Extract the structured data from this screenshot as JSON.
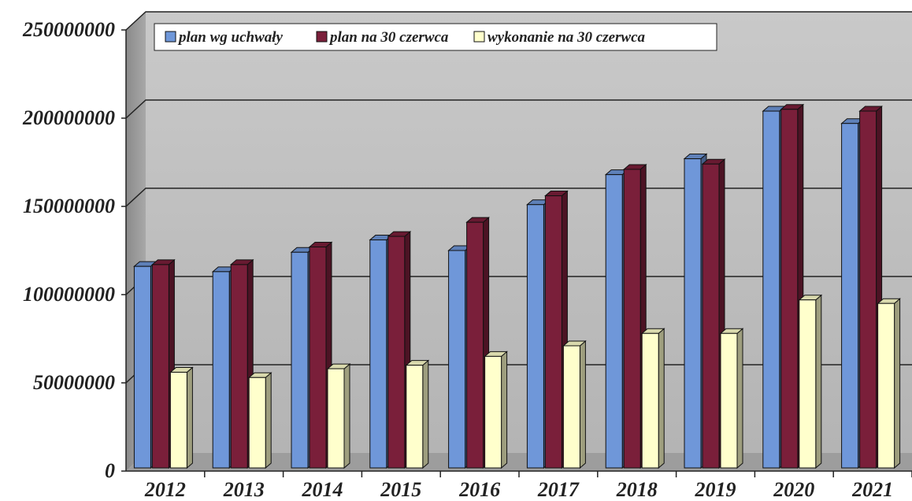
{
  "chart_data": {
    "type": "bar",
    "title": "",
    "xlabel": "",
    "ylabel": "",
    "categories": [
      "2012",
      "2013",
      "2014",
      "2015",
      "2016",
      "2017",
      "2018",
      "2019",
      "2020",
      "2021"
    ],
    "series": [
      {
        "name": "plan wg uchwały",
        "color": "#6f97d9",
        "values": [
          116000000,
          113000000,
          124000000,
          131000000,
          125000000,
          151000000,
          168000000,
          177000000,
          204000000,
          197000000
        ]
      },
      {
        "name": "plan na 30 czerwca",
        "color": "#7a1f3a",
        "values": [
          117000000,
          117000000,
          127000000,
          133000000,
          141000000,
          156000000,
          171000000,
          174000000,
          205000000,
          204000000
        ]
      },
      {
        "name": "wykonanie na 30 czerwca",
        "color": "#ffffcc",
        "values": [
          56000000,
          53000000,
          58000000,
          60000000,
          65000000,
          71000000,
          78000000,
          78000000,
          97000000,
          95000000
        ]
      }
    ],
    "ylim": [
      0,
      250000000
    ],
    "yticks": [
      "0",
      "50000000",
      "100000000",
      "150000000",
      "200000000",
      "250000000"
    ],
    "yticks_values": [
      0,
      50000000,
      100000000,
      150000000,
      200000000,
      250000000
    ],
    "grid": true,
    "legend_position": "top-left",
    "style": "3d-clustered"
  }
}
